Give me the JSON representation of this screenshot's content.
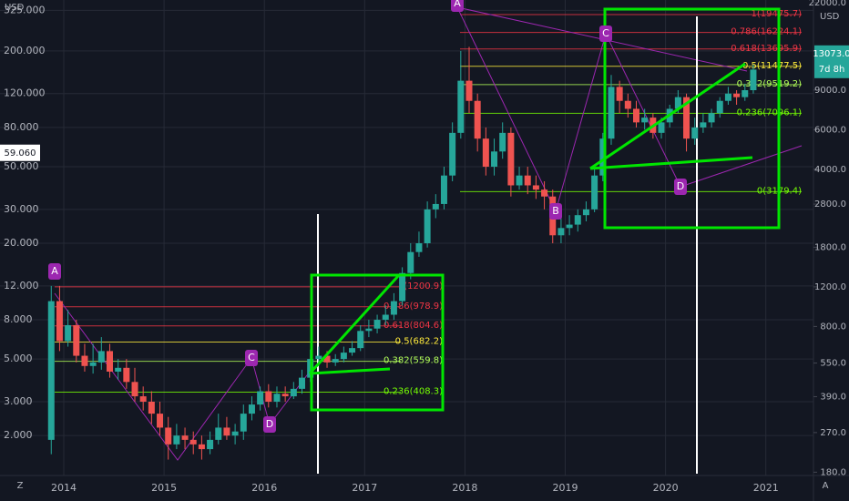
{
  "chart_data": {
    "type": "candlestick",
    "currency": "USD",
    "open": [
      1.9,
      10,
      6.2,
      7.5,
      5.2,
      4.6,
      4.8,
      5.5,
      4.3,
      4.5,
      3.8,
      3.2,
      3.0,
      2.6,
      2.2,
      1.8,
      2.0,
      1.9,
      1.8,
      1.7,
      1.9,
      2.2,
      2.0,
      2.1,
      2.6,
      2.9,
      3.4,
      3.0,
      3.3,
      3.2,
      3.5,
      4.0,
      5.0,
      5.2,
      4.8,
      5.0,
      5.4,
      5.7,
      7.0,
      7.2,
      8.0,
      8.5,
      10,
      14,
      18,
      20,
      30,
      32,
      45,
      75,
      140,
      110,
      70,
      50,
      60,
      75,
      40,
      45,
      40,
      38,
      35,
      22,
      24,
      25,
      28,
      30,
      45,
      70,
      130,
      110,
      100,
      85,
      90,
      75,
      85,
      100,
      115,
      70,
      80,
      85,
      95,
      110,
      120,
      115,
      125
    ],
    "high": [
      12,
      12,
      9,
      8,
      6,
      6,
      6.5,
      6,
      5,
      5,
      4.5,
      3.6,
      3.4,
      3,
      2.5,
      2.3,
      2.2,
      2.1,
      2,
      2.1,
      2.6,
      2.5,
      2.3,
      2.9,
      3.2,
      3.6,
      3.7,
      3.6,
      3.6,
      3.8,
      4.4,
      5.6,
      5.8,
      5.5,
      5.3,
      5.8,
      6.2,
      7.5,
      8,
      8.5,
      9.5,
      11,
      15,
      20,
      23,
      33,
      36,
      50,
      85,
      200,
      210,
      120,
      80,
      70,
      85,
      80,
      50,
      50,
      45,
      42,
      38,
      27,
      28,
      30,
      33,
      50,
      75,
      150,
      140,
      120,
      110,
      100,
      95,
      90,
      105,
      125,
      120,
      90,
      95,
      100,
      115,
      130,
      125,
      135,
      170
    ],
    "low": [
      1.6,
      5.5,
      5.8,
      4.8,
      4.3,
      4.2,
      4.4,
      4,
      3.9,
      3.5,
      3,
      2.7,
      2.3,
      2,
      1.5,
      1.7,
      1.7,
      1.6,
      1.5,
      1.6,
      1.8,
      1.9,
      1.8,
      1.9,
      2.4,
      2.7,
      2.8,
      2.8,
      3,
      3.1,
      3.3,
      3.8,
      4.6,
      4.5,
      4.6,
      4.8,
      5.2,
      5.5,
      6.5,
      6.8,
      7.5,
      8,
      9.5,
      13,
      17,
      19,
      27,
      30,
      42,
      70,
      95,
      60,
      45,
      45,
      55,
      35,
      38,
      36,
      34,
      30,
      20,
      20,
      22,
      23,
      26,
      29,
      42,
      65,
      95,
      90,
      80,
      78,
      70,
      70,
      80,
      95,
      60,
      65,
      75,
      80,
      90,
      105,
      105,
      110,
      120
    ],
    "close": [
      10,
      6.2,
      7.5,
      5.2,
      4.6,
      4.8,
      5.5,
      4.3,
      4.5,
      3.8,
      3.2,
      3.0,
      2.6,
      2.2,
      1.8,
      2.0,
      1.9,
      1.8,
      1.7,
      1.9,
      2.2,
      2.0,
      2.1,
      2.6,
      2.9,
      3.4,
      3.0,
      3.3,
      3.2,
      3.5,
      4.0,
      5.0,
      5.2,
      4.8,
      5.0,
      5.4,
      5.7,
      7.0,
      7.2,
      8.0,
      8.5,
      10,
      14,
      18,
      20,
      30,
      32,
      45,
      75,
      140,
      110,
      70,
      50,
      60,
      75,
      40,
      45,
      40,
      38,
      35,
      22,
      24,
      25,
      28,
      30,
      45,
      70,
      130,
      110,
      100,
      85,
      90,
      75,
      85,
      100,
      115,
      70,
      80,
      85,
      95,
      110,
      120,
      115,
      125,
      160
    ],
    "colors": {
      "up": "#26a69a",
      "down": "#ef5350"
    },
    "log_scale": true,
    "grid": true,
    "xlim": [
      2013.364,
      2021.475
    ],
    "xticks": [
      2014,
      2015,
      2016,
      2017,
      2018,
      2019,
      2020,
      2021
    ],
    "ylim": [
      1.24,
      368
    ],
    "yticks": [
      {
        "value": 325,
        "label": "325.000"
      },
      {
        "value": 200,
        "label": "200.000"
      },
      {
        "value": 120,
        "label": "120.000"
      },
      {
        "value": 80,
        "label": "80.000"
      },
      {
        "value": 50,
        "label": "50.000"
      },
      {
        "value": 30,
        "label": "30.000"
      },
      {
        "value": 20,
        "label": "20.000"
      },
      {
        "value": 12,
        "label": "12.000"
      },
      {
        "value": 8,
        "label": "8.000"
      },
      {
        "value": 5,
        "label": "5.000"
      },
      {
        "value": 3,
        "label": "3.000"
      },
      {
        "value": 2,
        "label": "2.000"
      }
    ],
    "y2lim": [
      174,
      22620
    ],
    "y2ticks": [
      {
        "value": 22000,
        "label": "22000.0"
      },
      {
        "value": 9000,
        "label": "9000.0"
      },
      {
        "value": 6000,
        "label": "6000.0"
      },
      {
        "value": 4000,
        "label": "4000.0"
      },
      {
        "value": 2800,
        "label": "2800.0"
      },
      {
        "value": 1800,
        "label": "1800.0"
      },
      {
        "value": 1200,
        "label": "1200.0"
      },
      {
        "value": 800,
        "label": "800.0"
      },
      {
        "value": 550,
        "label": "550.0"
      },
      {
        "value": 390,
        "label": "390.0"
      },
      {
        "value": 270,
        "label": "270.0"
      },
      {
        "value": 180,
        "label": "180.0"
      }
    ],
    "last_price": {
      "value": 59.06,
      "label": "59.060"
    },
    "y2_last_price": {
      "value": 13073,
      "label": "13073.0"
    },
    "countdown": "7d 8h",
    "fib_colors": [
      "#f23645",
      "#f23645",
      "#f23645",
      "#ffeb3b",
      "#b2ff59",
      "#76ff03",
      "#76ff03"
    ],
    "fib_levels": [
      [
        {
          "value": 1200.9,
          "label": "1(1200.9)"
        },
        {
          "value": 978.9,
          "label": "0.786(978.9)"
        },
        {
          "value": 804.6,
          "label": "0.618(804.6)"
        },
        {
          "value": 682.2,
          "label": "0.5(682.2)"
        },
        {
          "value": 559.8,
          "label": "0.382(559.8)"
        },
        {
          "value": 408.3,
          "label": "0.236(408.3)"
        }
      ],
      [
        {
          "value": 19475.7,
          "label": "1(19475.7)"
        },
        {
          "value": 16224.1,
          "label": "0.786(16224.1)"
        },
        {
          "value": 13695.9,
          "label": "0.618(13695.9)"
        },
        {
          "value": 11477.5,
          "label": "0.5(11477.5)"
        },
        {
          "value": 9519.2,
          "label": "0.382(9519.2)"
        },
        {
          "value": 7096.1,
          "label": "0.236(7096.1)"
        },
        {
          "value": 3179.4,
          "label": "0(3179.4)"
        }
      ]
    ],
    "pattern_labels": [
      "A",
      "C",
      "D",
      "A",
      "C",
      "B",
      "D"
    ],
    "scale_buttons": [
      "Z",
      "A"
    ]
  }
}
